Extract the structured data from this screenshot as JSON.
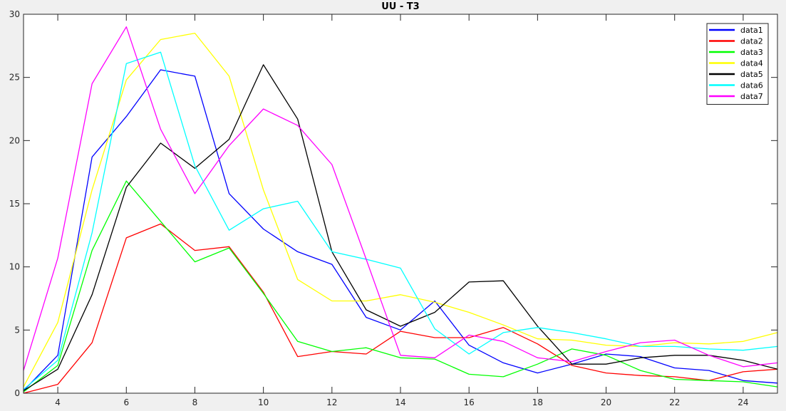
{
  "chart_data": {
    "type": "line",
    "title": "UU - T3",
    "xlabel": "",
    "ylabel": "",
    "xlim": [
      3,
      25
    ],
    "ylim": [
      0,
      30
    ],
    "x": [
      3,
      4,
      5,
      6,
      7,
      8,
      9,
      10,
      11,
      12,
      13,
      14,
      15,
      16,
      17,
      18,
      19,
      20,
      21,
      22,
      23,
      24,
      25
    ],
    "x_ticks": [
      4,
      6,
      8,
      10,
      12,
      14,
      16,
      18,
      20,
      22,
      24
    ],
    "y_ticks": [
      0,
      5,
      10,
      15,
      20,
      25,
      30
    ],
    "grid": false,
    "legend_position": "top-right",
    "series": [
      {
        "name": "data1",
        "color": "#0000ff",
        "values": [
          0.2,
          3.0,
          18.7,
          21.9,
          25.6,
          25.1,
          15.8,
          13.0,
          11.2,
          10.2,
          6.0,
          5.0,
          7.3,
          3.8,
          2.4,
          1.6,
          2.3,
          3.1,
          2.9,
          2.0,
          1.8,
          1.0,
          0.8
        ]
      },
      {
        "name": "data2",
        "color": "#ff0000",
        "values": [
          0.0,
          0.7,
          4.0,
          12.3,
          13.4,
          11.3,
          11.6,
          8.0,
          2.9,
          3.3,
          3.1,
          4.9,
          4.4,
          4.4,
          5.2,
          3.9,
          2.2,
          1.6,
          1.4,
          1.3,
          1.0,
          1.7,
          1.9
        ]
      },
      {
        "name": "data3",
        "color": "#00ff00",
        "values": [
          0.1,
          2.2,
          11.3,
          16.8,
          13.6,
          10.4,
          11.5,
          7.9,
          4.1,
          3.3,
          3.6,
          2.8,
          2.7,
          1.5,
          1.3,
          2.3,
          3.5,
          3.0,
          1.8,
          1.1,
          1.0,
          0.9,
          0.5
        ]
      },
      {
        "name": "data4",
        "color": "#ffff00",
        "values": [
          0.5,
          5.6,
          16.1,
          24.8,
          28.0,
          28.5,
          25.1,
          16.1,
          9.0,
          7.3,
          7.3,
          7.8,
          7.2,
          6.4,
          5.4,
          4.3,
          4.2,
          3.8,
          3.7,
          4.0,
          3.9,
          4.1,
          4.8
        ]
      },
      {
        "name": "data5",
        "color": "#000000",
        "values": [
          0.2,
          1.9,
          7.8,
          16.3,
          19.8,
          17.8,
          20.1,
          26.0,
          21.7,
          11.2,
          6.6,
          5.3,
          6.4,
          8.8,
          8.9,
          5.3,
          2.3,
          2.3,
          2.8,
          3.0,
          3.0,
          2.6,
          1.9
        ]
      },
      {
        "name": "data6",
        "color": "#00ffff",
        "values": [
          0.3,
          2.6,
          12.7,
          26.1,
          27.0,
          18.0,
          12.9,
          14.6,
          15.2,
          11.2,
          10.6,
          9.9,
          5.1,
          3.1,
          4.8,
          5.2,
          4.8,
          4.3,
          3.7,
          3.7,
          3.5,
          3.4,
          3.7
        ]
      },
      {
        "name": "data7",
        "color": "#ff00ff",
        "values": [
          1.8,
          10.7,
          24.5,
          29.0,
          20.9,
          15.8,
          19.6,
          22.5,
          21.2,
          18.1,
          10.6,
          3.0,
          2.8,
          4.6,
          4.1,
          2.8,
          2.5,
          3.3,
          4.0,
          4.2,
          3.0,
          2.1,
          2.4
        ]
      }
    ]
  }
}
